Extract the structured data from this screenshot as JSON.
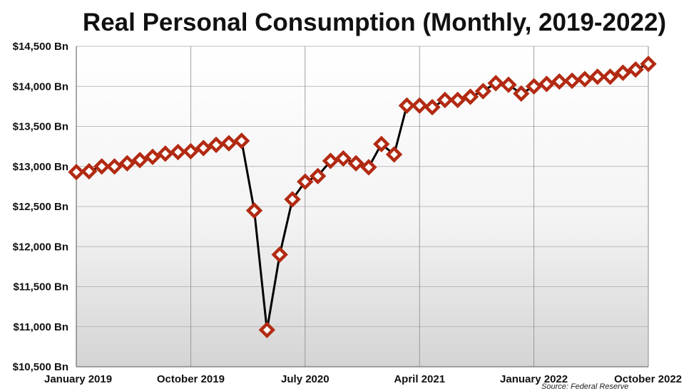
{
  "chart_data": {
    "type": "line",
    "title": "Real Personal Consumption (Monthly, 2019-2022)",
    "source": "Source: Federal Reserve",
    "xlabel": "",
    "ylabel": "",
    "ylim": [
      10500,
      14500
    ],
    "yticks": [
      {
        "value": 14500,
        "label": "$14,500 Bn"
      },
      {
        "value": 14000,
        "label": "$14,000 Bn"
      },
      {
        "value": 13500,
        "label": "$13,500 Bn"
      },
      {
        "value": 13000,
        "label": "$13,000 Bn"
      },
      {
        "value": 12500,
        "label": "$12,500 Bn"
      },
      {
        "value": 12000,
        "label": "$12,000 Bn"
      },
      {
        "value": 11500,
        "label": "$11,500 Bn"
      },
      {
        "value": 11000,
        "label": "$11,000 Bn"
      },
      {
        "value": 10500,
        "label": "$10,500 Bn"
      }
    ],
    "xticks": [
      {
        "index": 0,
        "label": "January 2019"
      },
      {
        "index": 9,
        "label": "October 2019"
      },
      {
        "index": 18,
        "label": "July 2020"
      },
      {
        "index": 27,
        "label": "April 2021"
      },
      {
        "index": 36,
        "label": "January 2022"
      },
      {
        "index": 45,
        "label": "October 2022"
      }
    ],
    "grid": true,
    "series_color": "#b22a12",
    "line_color": "#000000",
    "x": [
      "2019-01",
      "2019-02",
      "2019-03",
      "2019-04",
      "2019-05",
      "2019-06",
      "2019-07",
      "2019-08",
      "2019-09",
      "2019-10",
      "2019-11",
      "2019-12",
      "2020-01",
      "2020-02",
      "2020-03",
      "2020-04",
      "2020-05",
      "2020-06",
      "2020-07",
      "2020-08",
      "2020-09",
      "2020-10",
      "2020-11",
      "2020-12",
      "2021-01",
      "2021-02",
      "2021-03",
      "2021-04",
      "2021-05",
      "2021-06",
      "2021-07",
      "2021-08",
      "2021-09",
      "2021-10",
      "2021-11",
      "2021-12",
      "2022-01",
      "2022-02",
      "2022-03",
      "2022-04",
      "2022-05",
      "2022-06",
      "2022-07",
      "2022-08",
      "2022-09",
      "2022-10"
    ],
    "values": [
      12930,
      12940,
      13000,
      13000,
      13040,
      13080,
      13120,
      13160,
      13180,
      13190,
      13230,
      13270,
      13290,
      13320,
      12450,
      10960,
      11900,
      12590,
      12810,
      12880,
      13070,
      13100,
      13040,
      12990,
      13280,
      13150,
      13760,
      13760,
      13740,
      13830,
      13830,
      13870,
      13940,
      14040,
      14020,
      13910,
      14000,
      14030,
      14060,
      14070,
      14090,
      14120,
      14120,
      14170,
      14210,
      14280
    ]
  }
}
